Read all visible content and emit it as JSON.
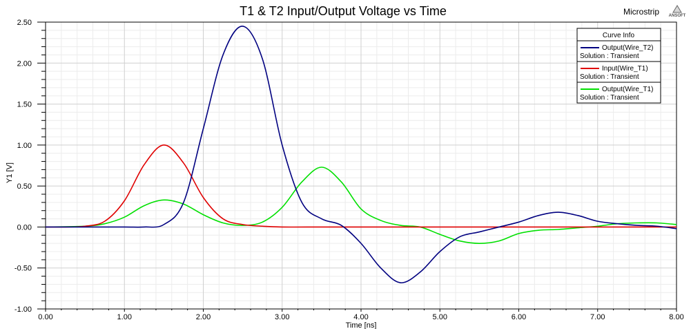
{
  "header": {
    "project_label": "Microstrip",
    "logo_text": "ANSOFT"
  },
  "chart_data": {
    "type": "line",
    "title": "T1 & T2 Input/Output Voltage vs Time",
    "xlabel": "Time [ns]",
    "ylabel": "Y1 [V]",
    "xlim": [
      0,
      8
    ],
    "ylim": [
      -1,
      2.5
    ],
    "x_ticks": [
      "0.00",
      "1.00",
      "2.00",
      "3.00",
      "4.00",
      "5.00",
      "6.00",
      "7.00",
      "8.00"
    ],
    "y_ticks": [
      "2.50",
      "2.00",
      "1.50",
      "1.00",
      "0.50",
      "0.00",
      "-0.50",
      "-1.00"
    ],
    "grid": true,
    "legend_position": "top-right",
    "legend_title": "Curve Info",
    "series": [
      {
        "name": "Output(Wire_T2)",
        "solution": "Solution : Transient",
        "color": "#000080",
        "x": [
          0,
          0.5,
          1.0,
          1.25,
          1.5,
          1.75,
          2.0,
          2.25,
          2.5,
          2.75,
          3.0,
          3.25,
          3.5,
          3.75,
          4.0,
          4.25,
          4.5,
          4.75,
          5.0,
          5.25,
          5.5,
          5.75,
          6.0,
          6.25,
          6.5,
          6.75,
          7.0,
          7.25,
          7.5,
          7.75,
          8.0
        ],
        "y": [
          0,
          0,
          0,
          0,
          0.03,
          0.3,
          1.2,
          2.1,
          2.45,
          2.05,
          1.0,
          0.3,
          0.1,
          0.02,
          -0.2,
          -0.5,
          -0.68,
          -0.55,
          -0.3,
          -0.12,
          -0.06,
          0.0,
          0.06,
          0.14,
          0.18,
          0.14,
          0.07,
          0.04,
          0.02,
          0.01,
          -0.02
        ]
      },
      {
        "name": "Input(Wire_T1)",
        "solution": "Solution : Transient",
        "color": "#e00000",
        "x": [
          0,
          0.25,
          0.5,
          0.75,
          1.0,
          1.25,
          1.5,
          1.75,
          2.0,
          2.25,
          2.5,
          2.75,
          3.0,
          3.5,
          4.0,
          5.0,
          6.0,
          7.0,
          8.0
        ],
        "y": [
          0,
          0,
          0.01,
          0.07,
          0.32,
          0.76,
          1.0,
          0.78,
          0.36,
          0.1,
          0.03,
          0.01,
          0,
          0,
          0,
          0,
          0,
          0,
          0
        ]
      },
      {
        "name": "Output(Wire_T1)",
        "solution": "Solution : Transient",
        "color": "#00e000",
        "x": [
          0,
          0.5,
          0.75,
          1.0,
          1.25,
          1.5,
          1.75,
          2.0,
          2.25,
          2.5,
          2.75,
          3.0,
          3.25,
          3.5,
          3.75,
          4.0,
          4.25,
          4.5,
          4.75,
          5.0,
          5.25,
          5.5,
          5.75,
          6.0,
          6.25,
          6.5,
          6.75,
          7.0,
          7.25,
          7.5,
          7.75,
          8.0
        ],
        "y": [
          0,
          0.01,
          0.04,
          0.12,
          0.26,
          0.33,
          0.28,
          0.15,
          0.05,
          0.02,
          0.06,
          0.24,
          0.55,
          0.73,
          0.55,
          0.22,
          0.08,
          0.02,
          0.0,
          -0.09,
          -0.17,
          -0.2,
          -0.17,
          -0.08,
          -0.04,
          -0.03,
          -0.01,
          0.01,
          0.04,
          0.05,
          0.05,
          0.03
        ]
      }
    ]
  }
}
